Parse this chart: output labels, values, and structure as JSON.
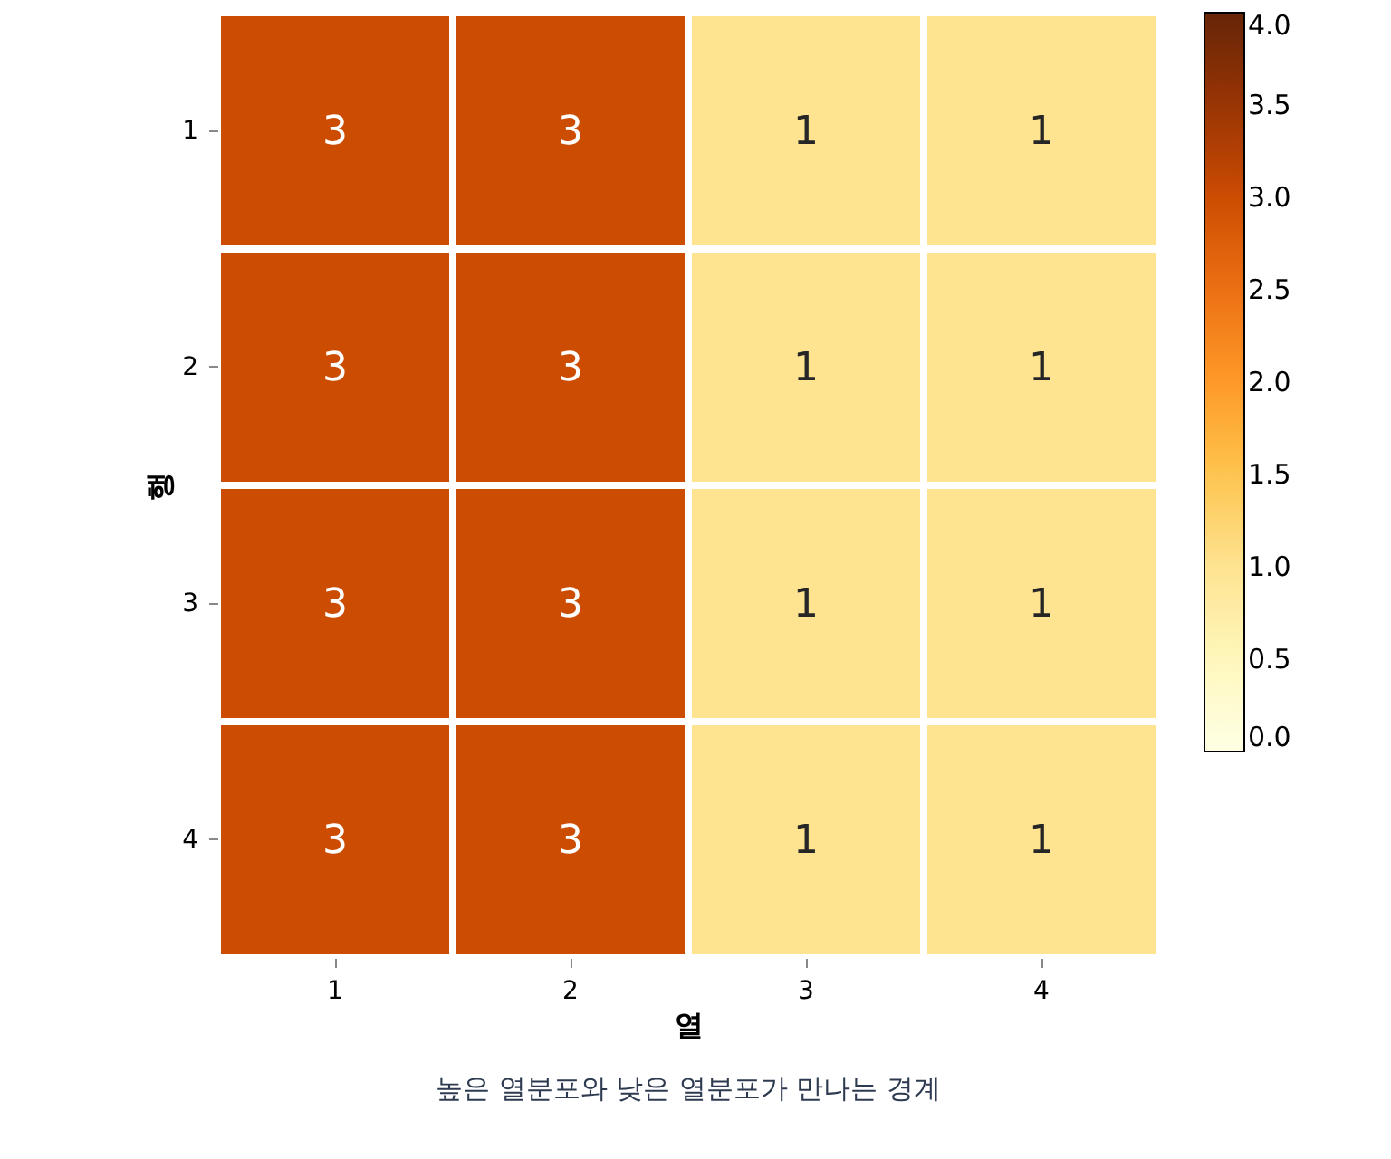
{
  "chart_data": {
    "type": "heatmap",
    "xlabel": "열",
    "ylabel": "행",
    "categories": [
      "1",
      "2",
      "3",
      "4"
    ],
    "y_categories": [
      "1",
      "2",
      "3",
      "4"
    ],
    "cells": [
      [
        3,
        3,
        1,
        1
      ],
      [
        3,
        3,
        1,
        1
      ],
      [
        3,
        3,
        1,
        1
      ],
      [
        3,
        3,
        1,
        1
      ]
    ],
    "data_labels": true,
    "clim": [
      0,
      4
    ],
    "cticks": [
      {
        "value": 0,
        "label": "0.0"
      },
      {
        "value": 0.5,
        "label": "0.5"
      },
      {
        "value": 1,
        "label": "1.0"
      },
      {
        "value": 1.5,
        "label": "1.5"
      },
      {
        "value": 2,
        "label": "2.0"
      },
      {
        "value": 2.5,
        "label": "2.5"
      },
      {
        "value": 3,
        "label": "3.0"
      },
      {
        "value": 3.5,
        "label": "3.5"
      },
      {
        "value": 4,
        "label": "4.0"
      }
    ],
    "annotations": [
      "높은 열분포와 낮은 열분포가 만나는 경계"
    ]
  }
}
